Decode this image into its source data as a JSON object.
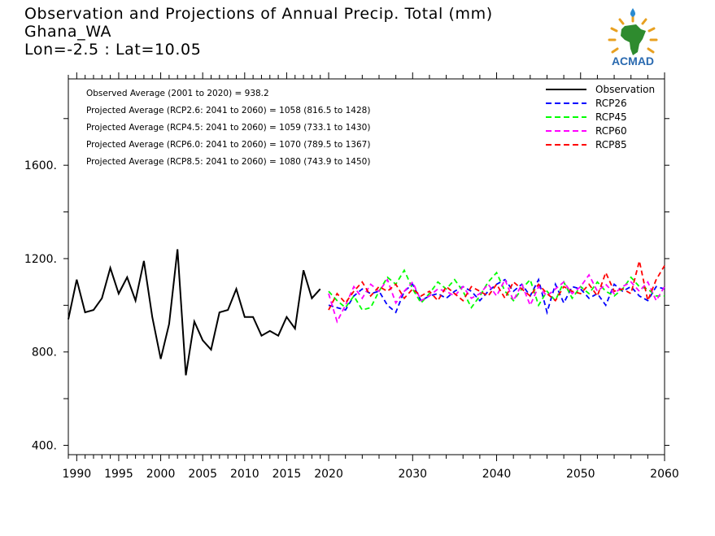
{
  "header": {
    "title": "Observation and Projections of Annual Precip. Total (mm)",
    "region": "Ghana_WA",
    "location": "Lon=-2.5 : Lat=10.05"
  },
  "logo": {
    "icon": "acmad-africa-logo-icon",
    "text": "ACMAD"
  },
  "chart_data": {
    "type": "line",
    "title": "Observation and Projections of Annual Precip. Total (mm)",
    "xlim": [
      1989,
      2060
    ],
    "ylim": [
      360,
      1970
    ],
    "yticks": [
      400,
      800,
      1200,
      1600
    ],
    "ytick_labels": [
      "400.",
      "800.",
      "1200.",
      "1600."
    ],
    "xticks_obs": [
      1990,
      1995,
      2000,
      2005,
      2010,
      2015,
      2020
    ],
    "xticks_proj": [
      2020,
      2030,
      2040,
      2050,
      2060
    ],
    "annotations": [
      "Observed Average (2001 to 2020) = 938.2",
      "Projected Average (RCP2.6: 2041 to 2060) = 1058 (816.5 to 1428)",
      "Projected Average (RCP4.5: 2041 to 2060) = 1059 (733.1 to 1430)",
      "Projected Average (RCP6.0: 2041 to 2060) = 1070 (789.5 to 1367)",
      "Projected Average (RCP8.5: 2041 to 2060) = 1080 (743.9 to 1450)"
    ],
    "legend_position": "top-right",
    "series": [
      {
        "name": "Observation",
        "color": "#000000",
        "dashed": false,
        "x": [
          1989,
          1990,
          1991,
          1992,
          1993,
          1994,
          1995,
          1996,
          1997,
          1998,
          1999,
          2000,
          2001,
          2002,
          2003,
          2004,
          2005,
          2006,
          2007,
          2008,
          2009,
          2010,
          2011,
          2012,
          2013,
          2014,
          2015,
          2016,
          2017,
          2018,
          2019
        ],
        "y": [
          940,
          1110,
          970,
          980,
          1030,
          1160,
          1050,
          1120,
          1020,
          1190,
          950,
          770,
          920,
          1240,
          700,
          930,
          850,
          810,
          970,
          980,
          1070,
          950,
          950,
          870,
          890,
          870,
          950,
          900,
          1150,
          1030,
          1070
        ]
      },
      {
        "name": "RCP26",
        "color": "#0000ff",
        "dashed": true,
        "x": [
          2020,
          2021,
          2022,
          2023,
          2024,
          2025,
          2026,
          2027,
          2028,
          2029,
          2030,
          2031,
          2032,
          2033,
          2034,
          2035,
          2036,
          2037,
          2038,
          2039,
          2040,
          2041,
          2042,
          2043,
          2044,
          2045,
          2046,
          2047,
          2048,
          2049,
          2050,
          2051,
          2052,
          2053,
          2054,
          2055,
          2056,
          2057,
          2058,
          2059,
          2060
        ],
        "y": [
          1000,
          990,
          980,
          1040,
          1070,
          1050,
          1060,
          1000,
          970,
          1060,
          1090,
          1020,
          1040,
          1050,
          1030,
          1060,
          1080,
          1060,
          1020,
          1060,
          1090,
          1110,
          1060,
          1090,
          1040,
          1110,
          970,
          1090,
          1010,
          1080,
          1070,
          1030,
          1050,
          1000,
          1090,
          1060,
          1080,
          1040,
          1020,
          1080,
          1070
        ]
      },
      {
        "name": "RCP45",
        "color": "#00ff00",
        "dashed": true,
        "x": [
          2020,
          2021,
          2022,
          2023,
          2024,
          2025,
          2026,
          2027,
          2028,
          2029,
          2030,
          2031,
          2032,
          2033,
          2034,
          2035,
          2036,
          2037,
          2038,
          2039,
          2040,
          2041,
          2042,
          2043,
          2044,
          2045,
          2046,
          2047,
          2048,
          2049,
          2050,
          2051,
          2052,
          2053,
          2054,
          2055,
          2056,
          2057,
          2058,
          2059,
          2060
        ],
        "y": [
          1060,
          1020,
          990,
          1040,
          980,
          990,
          1060,
          1120,
          1090,
          1150,
          1070,
          1010,
          1050,
          1100,
          1070,
          1110,
          1060,
          990,
          1040,
          1100,
          1140,
          1060,
          1020,
          1070,
          1110,
          1000,
          1060,
          1020,
          1100,
          1030,
          1080,
          1050,
          1100,
          1060,
          1040,
          1070,
          1120,
          1080,
          1070,
          1040,
          1040
        ]
      },
      {
        "name": "RCP60",
        "color": "#ff00ff",
        "dashed": true,
        "x": [
          2020,
          2021,
          2022,
          2023,
          2024,
          2025,
          2026,
          2027,
          2028,
          2029,
          2030,
          2031,
          2032,
          2033,
          2034,
          2035,
          2036,
          2037,
          2038,
          2039,
          2040,
          2041,
          2042,
          2043,
          2044,
          2045,
          2046,
          2047,
          2048,
          2049,
          2050,
          2051,
          2052,
          2053,
          2054,
          2055,
          2056,
          2057,
          2058,
          2059,
          2060
        ],
        "y": [
          1050,
          930,
          1000,
          1080,
          1030,
          1090,
          1060,
          1110,
          1010,
          1060,
          1100,
          1020,
          1040,
          1070,
          1060,
          1040,
          1080,
          1030,
          1050,
          1090,
          1040,
          1110,
          1020,
          1090,
          1000,
          1080,
          1040,
          1070,
          1100,
          1050,
          1080,
          1130,
          1060,
          1090,
          1050,
          1080,
          1100,
          1060,
          1100,
          1020,
          1080
        ]
      },
      {
        "name": "RCP85",
        "color": "#ff0000",
        "dashed": true,
        "x": [
          2020,
          2021,
          2022,
          2023,
          2024,
          2025,
          2026,
          2027,
          2028,
          2029,
          2030,
          2031,
          2032,
          2033,
          2034,
          2035,
          2036,
          2037,
          2038,
          2039,
          2040,
          2041,
          2042,
          2043,
          2044,
          2045,
          2046,
          2047,
          2048,
          2049,
          2050,
          2051,
          2052,
          2053,
          2054,
          2055,
          2056,
          2057,
          2058,
          2059,
          2060
        ],
        "y": [
          980,
          1050,
          1010,
          1060,
          1100,
          1040,
          1080,
          1060,
          1090,
          1030,
          1070,
          1040,
          1060,
          1020,
          1080,
          1050,
          1020,
          1080,
          1060,
          1040,
          1090,
          1030,
          1100,
          1070,
          1040,
          1090,
          1050,
          1020,
          1080,
          1060,
          1050,
          1090,
          1040,
          1140,
          1060,
          1070,
          1050,
          1190,
          1020,
          1110,
          1170
        ]
      }
    ]
  }
}
